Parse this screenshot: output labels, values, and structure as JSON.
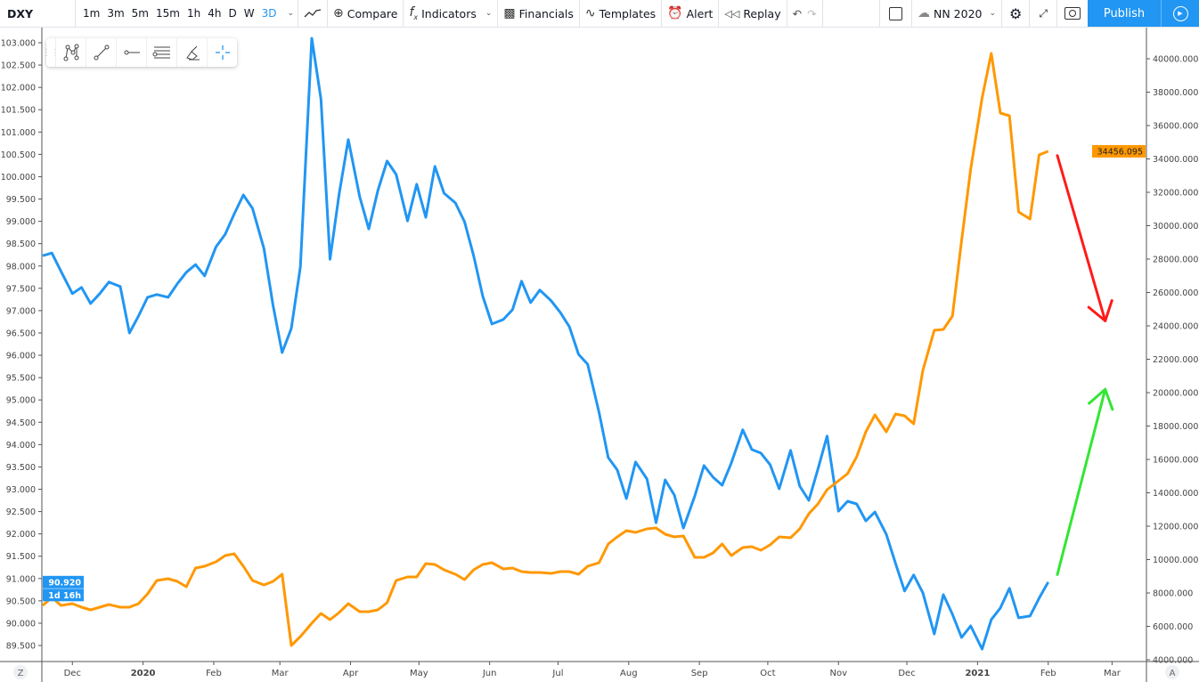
{
  "toolbar": {
    "symbol": "DXY",
    "intervals": [
      "1m",
      "3m",
      "5m",
      "15m",
      "1h",
      "4h",
      "D",
      "W",
      "3D"
    ],
    "active_interval": "3D",
    "compare": "Compare",
    "indicators": "Indicators",
    "financials": "Financials",
    "templates": "Templates",
    "alert": "Alert",
    "replay": "Replay",
    "layout_name": "NN 2020",
    "publish": "Publish"
  },
  "price_labels": {
    "left_last": "90.920",
    "left_countdown": "1d 16h",
    "right_last": "34456.095"
  },
  "axis_buttons": {
    "left": "Z",
    "right": "A"
  },
  "colors": {
    "dxy": "#2196f3",
    "second": "#ff9800",
    "arrow_down": "#ff1a1a",
    "arrow_up": "#33e633",
    "accent": "#2196f3"
  },
  "chart_data": {
    "type": "line",
    "left_axis": {
      "ylim": [
        89.5,
        103.0
      ],
      "ticks": [
        "103.000",
        "102.500",
        "102.000",
        "101.500",
        "101.000",
        "100.500",
        "100.000",
        "99.500",
        "99.000",
        "98.500",
        "98.000",
        "97.500",
        "97.000",
        "96.500",
        "96.000",
        "95.500",
        "95.000",
        "94.500",
        "94.000",
        "93.500",
        "93.000",
        "92.500",
        "92.000",
        "91.500",
        "91.000",
        "90.500",
        "90.000",
        "89.500"
      ]
    },
    "right_axis": {
      "ylim": [
        4000,
        40000
      ],
      "ticks": [
        "40000.000",
        "38000.000",
        "36000.000",
        "34000.000",
        "32000.000",
        "30000.000",
        "28000.000",
        "26000.000",
        "24000.000",
        "22000.000",
        "20000.000",
        "18000.000",
        "16000.000",
        "14000.000",
        "12000.000",
        "10000.000",
        "8000.000",
        "6000.000",
        "4000.000"
      ]
    },
    "x_ticks": [
      {
        "label": "Dec",
        "date": "2019-12-01"
      },
      {
        "label": "2020",
        "date": "2020-01-01",
        "bold": true
      },
      {
        "label": "Feb",
        "date": "2020-02-01"
      },
      {
        "label": "Mar",
        "date": "2020-03-01"
      },
      {
        "label": "Apr",
        "date": "2020-04-01"
      },
      {
        "label": "May",
        "date": "2020-05-01"
      },
      {
        "label": "Jun",
        "date": "2020-06-01"
      },
      {
        "label": "Jul",
        "date": "2020-07-01"
      },
      {
        "label": "Aug",
        "date": "2020-08-01"
      },
      {
        "label": "Sep",
        "date": "2020-09-01"
      },
      {
        "label": "Oct",
        "date": "2020-10-01"
      },
      {
        "label": "Nov",
        "date": "2020-11-01"
      },
      {
        "label": "Dec",
        "date": "2020-12-01"
      },
      {
        "label": "2021",
        "date": "2021-01-01",
        "bold": true
      },
      {
        "label": "Feb",
        "date": "2021-02-01"
      },
      {
        "label": "Mar",
        "date": "2021-03-01"
      }
    ],
    "dates": [
      "2019-11-18",
      "2019-11-22",
      "2019-11-26",
      "2019-12-01",
      "2019-12-05",
      "2019-12-09",
      "2019-12-13",
      "2019-12-17",
      "2019-12-22",
      "2019-12-26",
      "2019-12-30",
      "2020-01-03",
      "2020-01-07",
      "2020-01-12",
      "2020-01-16",
      "2020-01-20",
      "2020-01-24",
      "2020-01-28",
      "2020-02-02",
      "2020-02-06",
      "2020-02-10",
      "2020-02-14",
      "2020-02-18",
      "2020-02-23",
      "2020-02-27",
      "2020-03-02",
      "2020-03-06",
      "2020-03-10",
      "2020-03-15",
      "2020-03-19",
      "2020-03-23",
      "2020-03-27",
      "2020-03-31",
      "2020-04-05",
      "2020-04-09",
      "2020-04-13",
      "2020-04-17",
      "2020-04-21",
      "2020-04-26",
      "2020-04-30",
      "2020-05-04",
      "2020-05-08",
      "2020-05-12",
      "2020-05-17",
      "2020-05-21",
      "2020-05-25",
      "2020-05-29",
      "2020-06-02",
      "2020-06-07",
      "2020-06-11",
      "2020-06-15",
      "2020-06-19",
      "2020-06-23",
      "2020-06-28",
      "2020-07-02",
      "2020-07-06",
      "2020-07-10",
      "2020-07-14",
      "2020-07-19",
      "2020-07-23",
      "2020-07-27",
      "2020-07-31",
      "2020-08-04",
      "2020-08-09",
      "2020-08-13",
      "2020-08-17",
      "2020-08-21",
      "2020-08-25",
      "2020-08-30",
      "2020-09-03",
      "2020-09-07",
      "2020-09-11",
      "2020-09-15",
      "2020-09-20",
      "2020-09-24",
      "2020-09-28",
      "2020-10-02",
      "2020-10-06",
      "2020-10-11",
      "2020-10-15",
      "2020-10-19",
      "2020-10-23",
      "2020-10-27",
      "2020-11-01",
      "2020-11-05",
      "2020-11-09",
      "2020-11-13",
      "2020-11-17",
      "2020-11-22",
      "2020-11-26",
      "2020-11-30",
      "2020-12-04",
      "2020-12-08",
      "2020-12-13",
      "2020-12-17",
      "2020-12-21",
      "2020-12-25",
      "2020-12-29",
      "2021-01-03",
      "2021-01-07",
      "2021-01-11",
      "2021-01-15",
      "2021-01-19",
      "2021-01-24",
      "2021-01-28",
      "2021-02-01"
    ],
    "series": [
      {
        "axis": "left",
        "color": "#2196f3",
        "values": [
          98.23,
          98.29,
          97.88,
          97.38,
          97.52,
          97.16,
          97.38,
          97.64,
          97.54,
          96.5,
          96.88,
          97.3,
          97.36,
          97.3,
          97.6,
          97.86,
          98.03,
          97.78,
          98.43,
          98.71,
          99.17,
          99.59,
          99.29,
          98.39,
          97.12,
          96.06,
          96.6,
          97.98,
          103.1,
          101.74,
          98.15,
          99.61,
          100.83,
          99.55,
          98.83,
          99.69,
          100.35,
          100.05,
          99.01,
          99.83,
          99.09,
          100.23,
          99.63,
          99.41,
          98.99,
          98.23,
          97.32,
          96.7,
          96.8,
          97.02,
          97.66,
          97.18,
          97.46,
          97.22,
          96.96,
          96.64,
          96.02,
          95.8,
          94.72,
          93.71,
          93.43,
          92.79,
          93.61,
          93.23,
          92.25,
          93.21,
          92.87,
          92.13,
          92.85,
          93.53,
          93.27,
          93.09,
          93.59,
          94.33,
          93.89,
          93.81,
          93.55,
          93.01,
          93.87,
          93.07,
          92.75,
          93.45,
          94.19,
          92.51,
          92.73,
          92.67,
          92.29,
          92.49,
          91.99,
          91.34,
          90.72,
          91.08,
          90.68,
          89.76,
          90.64,
          90.2,
          89.68,
          89.94,
          89.42,
          90.08,
          90.34,
          90.78,
          90.12,
          90.16,
          90.56,
          90.92
        ]
      },
      {
        "axis": "right",
        "color": "#ff9800",
        "values": [
          7255,
          7733,
          7255,
          7360,
          7147,
          6987,
          7147,
          7307,
          7147,
          7147,
          7360,
          7947,
          8747,
          8853,
          8693,
          8373,
          9493,
          9600,
          9867,
          10240,
          10347,
          9600,
          8747,
          8480,
          8693,
          9120,
          4853,
          5387,
          6187,
          6773,
          6400,
          6827,
          7360,
          6880,
          6880,
          6987,
          7413,
          8747,
          8960,
          8960,
          9760,
          9707,
          9387,
          9120,
          8800,
          9387,
          9707,
          9813,
          9440,
          9493,
          9280,
          9227,
          9227,
          9173,
          9280,
          9280,
          9120,
          9600,
          9813,
          10933,
          11360,
          11733,
          11627,
          11840,
          11893,
          11520,
          11360,
          11413,
          10133,
          10133,
          10400,
          10933,
          10240,
          10720,
          10773,
          10560,
          10880,
          11360,
          11307,
          11840,
          12747,
          13333,
          14187,
          14720,
          15147,
          16160,
          17653,
          18667,
          17653,
          18720,
          18613,
          18133,
          21333,
          23733,
          23787,
          24587,
          29120,
          33387,
          37653,
          40320,
          36747,
          36587,
          30827,
          30400,
          34240,
          34456.095
        ]
      }
    ],
    "annotations": [
      {
        "type": "arrow",
        "axis": "right",
        "color": "#ff1a1a",
        "from": {
          "date": "2021-02-05",
          "value": 34200
        },
        "to": {
          "date": "2021-02-26",
          "value": 24300
        }
      },
      {
        "type": "arrow",
        "axis": "right",
        "color": "#33e633",
        "from": {
          "date": "2021-02-05",
          "value": 9100
        },
        "to": {
          "date": "2021-02-26",
          "value": 20200
        }
      }
    ],
    "grid": false
  }
}
